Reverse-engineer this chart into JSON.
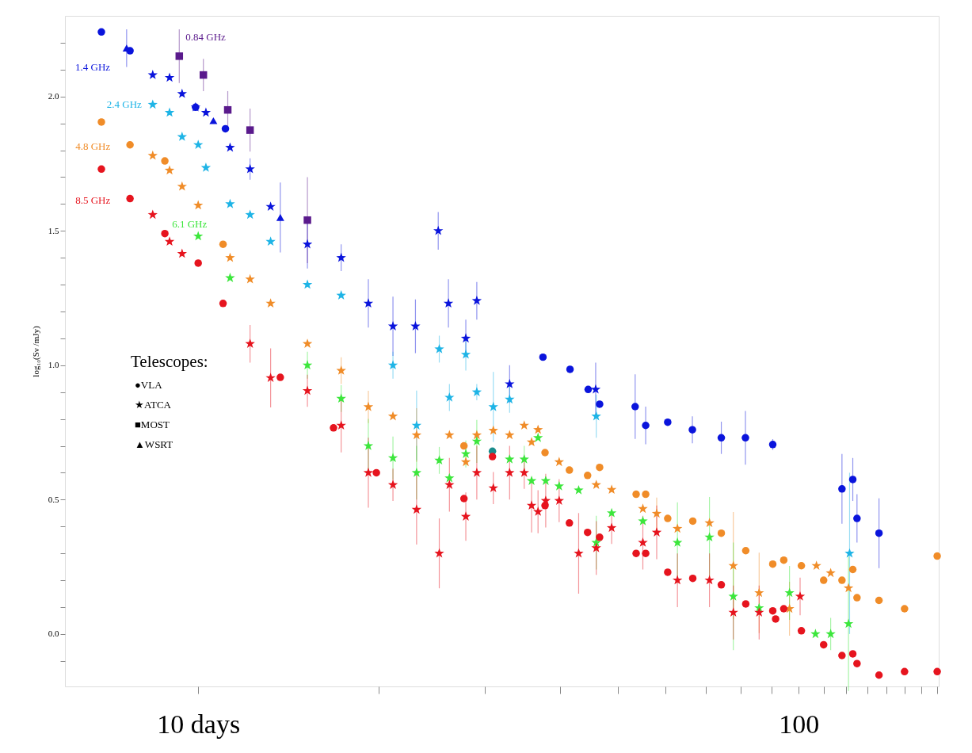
{
  "chart_data": {
    "type": "scatter",
    "ylabel": "log₁₀(Sν /mJy)",
    "log": "x",
    "grid": false,
    "xlim": [
      6.0,
      171
    ],
    "ylim": [
      -0.195,
      2.3
    ],
    "xticks": [
      {
        "value": 10,
        "label": "10 days"
      },
      {
        "value": 20,
        "label": null
      },
      {
        "value": 30,
        "label": null
      },
      {
        "value": 40,
        "label": null
      },
      {
        "value": 50,
        "label": null
      },
      {
        "value": 60,
        "label": null
      },
      {
        "value": 70,
        "label": null
      },
      {
        "value": 80,
        "label": null
      },
      {
        "value": 90,
        "label": null
      },
      {
        "value": 100,
        "label": "100"
      },
      {
        "value": 110,
        "label": null
      },
      {
        "value": 120,
        "label": null
      },
      {
        "value": 130,
        "label": null
      },
      {
        "value": 140,
        "label": null
      },
      {
        "value": 150,
        "label": null
      },
      {
        "value": 160,
        "label": null
      },
      {
        "value": 170,
        "label": null
      }
    ],
    "yticks": [
      {
        "value": -0.1,
        "label": null
      },
      {
        "value": 0,
        "label": "0.0"
      },
      {
        "value": 0.1,
        "label": null
      },
      {
        "value": 0.2,
        "label": null
      },
      {
        "value": 0.3,
        "label": null
      },
      {
        "value": 0.4,
        "label": null
      },
      {
        "value": 0.5,
        "label": "0.5"
      },
      {
        "value": 0.6,
        "label": null
      },
      {
        "value": 0.7,
        "label": null
      },
      {
        "value": 0.8,
        "label": null
      },
      {
        "value": 0.9,
        "label": null
      },
      {
        "value": 1,
        "label": "1.0"
      },
      {
        "value": 1.1,
        "label": null
      },
      {
        "value": 1.2,
        "label": null
      },
      {
        "value": 1.3,
        "label": null
      },
      {
        "value": 1.4,
        "label": null
      },
      {
        "value": 1.5,
        "label": "1.5"
      },
      {
        "value": 1.6,
        "label": null
      },
      {
        "value": 1.7,
        "label": null
      },
      {
        "value": 1.8,
        "label": null
      },
      {
        "value": 1.9,
        "label": null
      },
      {
        "value": 2,
        "label": "2.0"
      },
      {
        "value": 2.1,
        "label": null
      },
      {
        "value": 2.2,
        "label": null
      }
    ],
    "annotations": [
      "Telescopes:",
      "●VLA",
      "★ATCA",
      "■MOST",
      "▲WSRT"
    ],
    "series": [
      {
        "name": "1.4 GHz",
        "color": "#0a14dc",
        "marker": "circle",
        "x": [
          6.9,
          7.7,
          9.9,
          11.1,
          37.5,
          41.6,
          44.6,
          46.6,
          53.4,
          55.6,
          60.5,
          66.5,
          74.3,
          81.5,
          90.5,
          118,
          123,
          125,
          136
        ],
        "values": [
          2.24,
          2.17,
          1.96,
          1.88,
          1.03,
          0.985,
          0.91,
          0.855,
          0.846,
          0.776,
          0.788,
          0.76,
          0.73,
          0.73,
          0.705,
          0.54,
          0.575,
          0.43,
          0.375
        ],
        "errors": [
          null,
          null,
          null,
          null,
          null,
          null,
          null,
          null,
          0.12,
          0.07,
          null,
          0.05,
          0.06,
          0.1,
          0.02,
          0.13,
          0.08,
          0.09,
          0.13
        ]
      },
      {
        "color": "#0a14dc",
        "marker": "star",
        "x": [
          8.4,
          8.96,
          9.4,
          9.9,
          10.3,
          11.3,
          12.2,
          13.2,
          15.2,
          17.3,
          19.2,
          21.1,
          23,
          25.1,
          26.1,
          27.9,
          29.1,
          33,
          45.9
        ],
        "values": [
          2.08,
          2.07,
          2.01,
          1.96,
          1.94,
          1.81,
          1.73,
          1.59,
          1.45,
          1.4,
          1.23,
          1.145,
          1.145,
          1.5,
          1.23,
          1.1,
          1.24,
          0.93,
          0.91
        ],
        "errors": [
          null,
          null,
          null,
          null,
          null,
          null,
          0.04,
          null,
          0.09,
          0.05,
          0.09,
          0.11,
          0.1,
          0.07,
          0.09,
          0.07,
          0.07,
          0.07,
          0.1
        ]
      },
      {
        "color": "#0a14dc",
        "marker": "triangle",
        "x": [
          7.6,
          10.6,
          13.7
        ],
        "values": [
          2.18,
          1.91,
          1.55
        ],
        "errors": [
          0.07,
          null,
          0.13
        ]
      },
      {
        "name": "0.84 GHz",
        "color": "#5a1a8c",
        "marker": "square",
        "x": [
          9.3,
          10.2,
          11.2,
          12.2,
          15.2
        ],
        "values": [
          2.15,
          2.08,
          1.95,
          1.875,
          1.54
        ],
        "errors": [
          0.1,
          0.06,
          0.07,
          0.08,
          0.16
        ]
      },
      {
        "name": "2.4 GHz",
        "color": "#1eb4e6",
        "marker": "star",
        "x": [
          8.4,
          8.96,
          9.4,
          10,
          10.3,
          11.3,
          12.2,
          13.2,
          15.2,
          17.3,
          21.1,
          23.1,
          25.2,
          26.2,
          27.9,
          29.1,
          31,
          33,
          46,
          121.5
        ],
        "values": [
          1.97,
          1.94,
          1.85,
          1.82,
          1.735,
          1.6,
          1.56,
          1.46,
          1.3,
          1.26,
          1.0,
          0.776,
          1.06,
          0.88,
          1.04,
          0.9,
          0.845,
          0.873,
          0.81,
          0.3
        ],
        "errors": [
          null,
          null,
          null,
          null,
          null,
          null,
          null,
          null,
          null,
          null,
          0.05,
          0.13,
          0.05,
          0.05,
          0.06,
          0.03,
          0.13,
          0.05,
          0.08,
          0.3
        ]
      },
      {
        "color": "#1a8c8c",
        "marker": "circle",
        "x": [
          30.9
        ],
        "values": [
          0.68
        ]
      },
      {
        "name": "4.8 GHz",
        "color": "#f08c28",
        "marker": "circle",
        "x": [
          6.9,
          7.7,
          8.8,
          11.0,
          27.7,
          37.8,
          41.5,
          44.5,
          46.6,
          53.6,
          55.6,
          60.5,
          66.6,
          74.3,
          81.6,
          90.5,
          94.4,
          101,
          110,
          118,
          123,
          125,
          136,
          150,
          170
        ],
        "values": [
          1.905,
          1.82,
          1.76,
          1.45,
          0.7,
          0.675,
          0.61,
          0.59,
          0.62,
          0.52,
          0.52,
          0.43,
          0.42,
          0.375,
          0.31,
          0.26,
          0.275,
          0.254,
          0.2,
          0.2,
          0.24,
          0.135,
          0.125,
          0.094,
          0.29
        ]
      },
      {
        "color": "#f08c28",
        "marker": "star",
        "x": [
          8.4,
          8.96,
          9.4,
          10,
          11.3,
          12.2,
          13.2,
          15.2,
          17.3,
          19.2,
          21.1,
          23.1,
          26.2,
          27.9,
          29.1,
          31,
          33,
          34.9,
          35.9,
          36.8,
          39.9,
          46,
          48.8,
          55,
          58,
          62.8,
          71,
          77.8,
          85.9,
          96.5,
          107,
          113,
          121
        ],
        "values": [
          1.78,
          1.725,
          1.665,
          1.595,
          1.4,
          1.32,
          1.23,
          1.08,
          0.98,
          0.845,
          0.81,
          0.74,
          0.74,
          0.64,
          0.74,
          0.757,
          0.74,
          0.776,
          0.714,
          0.76,
          0.64,
          0.555,
          0.537,
          0.466,
          0.448,
          0.392,
          0.413,
          0.254,
          0.153,
          0.094,
          0.254,
          0.227,
          0.171
        ],
        "errors": [
          null,
          null,
          null,
          null,
          null,
          null,
          null,
          null,
          0.05,
          0.06,
          null,
          0.1,
          null,
          null,
          null,
          null,
          null,
          null,
          null,
          null,
          null,
          null,
          null,
          null,
          0.06,
          null,
          null,
          0.2,
          0.15,
          0.1,
          null,
          null,
          null
        ]
      },
      {
        "name": "6.1 GHz",
        "color": "#3ce63c",
        "marker": "star",
        "x": [
          10,
          11.3,
          15.2,
          17.3,
          19.2,
          21.1,
          23.1,
          25.2,
          26.2,
          27.9,
          29.1,
          33,
          34.9,
          35.9,
          36.8,
          37.9,
          39.9,
          43,
          46,
          48.8,
          55,
          62.8,
          71,
          77.8,
          85.9,
          96.5,
          106.6,
          113,
          121
        ],
        "values": [
          1.48,
          1.325,
          1.0,
          0.876,
          0.7,
          0.655,
          0.6,
          0.646,
          0.58,
          0.67,
          0.717,
          0.65,
          0.65,
          0.57,
          0.73,
          0.57,
          0.55,
          0.535,
          0.34,
          0.45,
          0.42,
          0.34,
          0.36,
          0.14,
          0.097,
          0.153,
          0.0,
          0.0,
          0.038
        ],
        "errors": [
          null,
          null,
          0.05,
          0.05,
          0.1,
          0.08,
          0.1,
          0.05,
          null,
          0.05,
          0.08,
          null,
          0.05,
          null,
          null,
          null,
          null,
          null,
          0.1,
          null,
          null,
          0.15,
          0.15,
          0.2,
          null,
          0.1,
          null,
          0.06,
          0.25
        ]
      },
      {
        "name": "8.5 GHz",
        "color": "#e6141e",
        "marker": "circle",
        "x": [
          6.9,
          7.7,
          8.8,
          10,
          11,
          13.7,
          16.8,
          19.8,
          27.7,
          30.9,
          37.8,
          41.5,
          44.5,
          46.6,
          53.6,
          55.6,
          60.5,
          66.6,
          74.3,
          81.6,
          90.5,
          91.5,
          94.4,
          101,
          110,
          118,
          123,
          125,
          136,
          150,
          170
        ],
        "values": [
          1.73,
          1.62,
          1.49,
          1.38,
          1.23,
          0.955,
          0.767,
          0.6,
          0.504,
          0.66,
          0.478,
          0.413,
          0.378,
          0.36,
          0.3,
          0.3,
          0.23,
          0.207,
          0.183,
          0.112,
          0.086,
          0.056,
          0.094,
          0.012,
          -0.04,
          -0.08,
          -0.074,
          -0.11,
          -0.153,
          -0.14,
          -0.14
        ]
      },
      {
        "color": "#e6141e",
        "marker": "star",
        "x": [
          8.4,
          8.96,
          9.4,
          12.2,
          13.2,
          15.2,
          17.3,
          19.2,
          21.1,
          23.1,
          25.2,
          26.2,
          27.9,
          29.1,
          31,
          33,
          34.9,
          35.9,
          36.8,
          37.9,
          39.9,
          43,
          46,
          48.8,
          55,
          58,
          62.8,
          71,
          77.8,
          85.9,
          100.5
        ],
        "values": [
          1.56,
          1.46,
          1.415,
          1.08,
          0.953,
          0.905,
          0.776,
          0.6,
          0.555,
          0.463,
          0.3,
          0.555,
          0.437,
          0.6,
          0.543,
          0.6,
          0.6,
          0.478,
          0.455,
          0.496,
          0.496,
          0.3,
          0.32,
          0.395,
          0.34,
          0.378,
          0.2,
          0.2,
          0.08,
          0.08,
          0.14
        ],
        "errors": [
          null,
          null,
          null,
          0.07,
          0.11,
          0.06,
          0.1,
          0.13,
          0.06,
          0.13,
          0.13,
          0.1,
          0.09,
          0.1,
          0.06,
          0.1,
          0.06,
          0.1,
          0.08,
          0.1,
          0.08,
          0.15,
          0.1,
          0.06,
          0.1,
          0.1,
          0.1,
          0.1,
          0.1,
          0.1,
          0.07
        ]
      }
    ]
  }
}
